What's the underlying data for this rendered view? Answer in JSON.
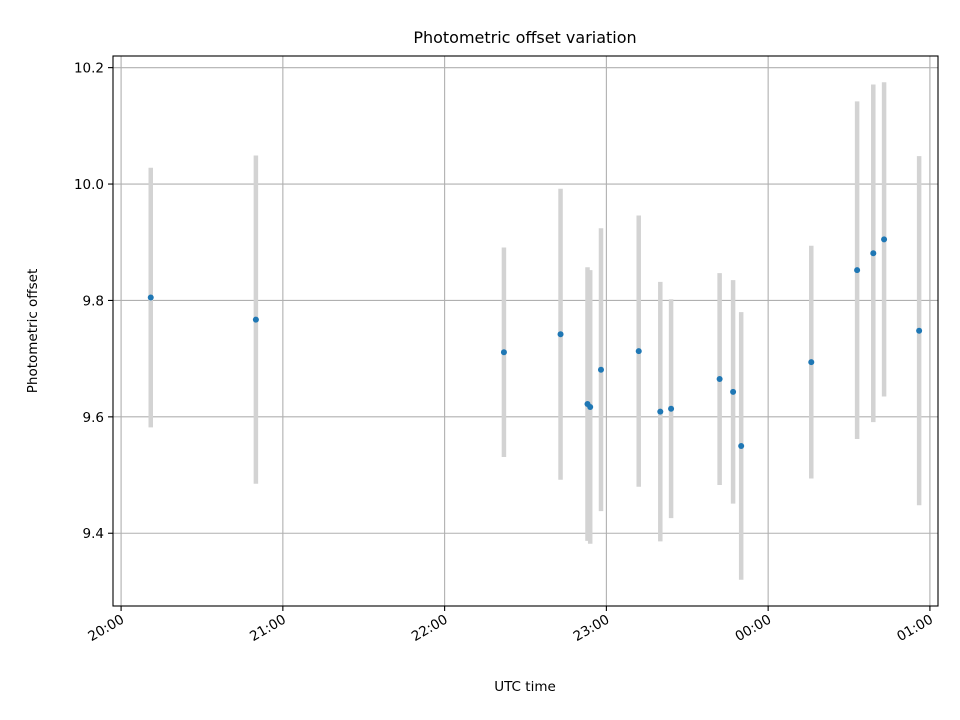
{
  "chart_data": {
    "type": "scatter",
    "title": "Photometric offset variation",
    "xlabel": "UTC time",
    "ylabel": "Photometric offset",
    "xlim": [
      "19:57",
      "01:03"
    ],
    "ylim": [
      9.275,
      10.22
    ],
    "grid": true,
    "x_ticks": [
      "20:00",
      "21:00",
      "22:00",
      "23:00",
      "00:00",
      "01:00"
    ],
    "y_ticks": [
      "9.4",
      "9.6",
      "9.8",
      "10.0",
      "10.2"
    ],
    "colors": {
      "point": "#1f77b4",
      "errorbar": "#d3d3d3"
    },
    "series": [
      {
        "points": [
          {
            "x": "20:11",
            "y": 9.805,
            "yerr": 0.223
          },
          {
            "x": "20:50",
            "y": 9.767,
            "yerr": 0.282
          },
          {
            "x": "22:22",
            "y": 9.711,
            "yerr": 0.18
          },
          {
            "x": "22:43",
            "y": 9.742,
            "yerr": 0.25
          },
          {
            "x": "22:53",
            "y": 9.622,
            "yerr": 0.235
          },
          {
            "x": "22:54",
            "y": 9.617,
            "yerr": 0.235
          },
          {
            "x": "22:58",
            "y": 9.681,
            "yerr": 0.243
          },
          {
            "x": "23:12",
            "y": 9.713,
            "yerr": 0.233
          },
          {
            "x": "23:20",
            "y": 9.609,
            "yerr": 0.223
          },
          {
            "x": "23:24",
            "y": 9.614,
            "yerr": 0.188
          },
          {
            "x": "23:42",
            "y": 9.665,
            "yerr": 0.182
          },
          {
            "x": "23:47",
            "y": 9.643,
            "yerr": 0.192
          },
          {
            "x": "23:50",
            "y": 9.55,
            "yerr": 0.23
          },
          {
            "x": "00:16",
            "y": 9.694,
            "yerr": 0.2
          },
          {
            "x": "00:33",
            "y": 9.852,
            "yerr": 0.29
          },
          {
            "x": "00:39",
            "y": 9.881,
            "yerr": 0.29
          },
          {
            "x": "00:43",
            "y": 9.905,
            "yerr": 0.27
          },
          {
            "x": "00:56",
            "y": 9.748,
            "yerr": 0.3
          }
        ]
      }
    ]
  }
}
